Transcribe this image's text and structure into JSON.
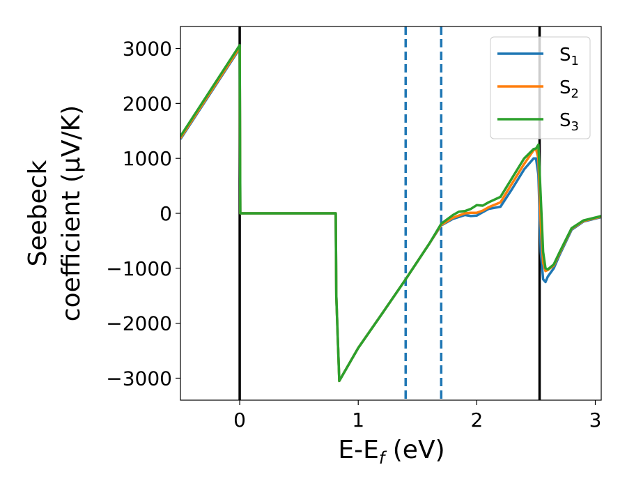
{
  "chart_data": {
    "type": "line",
    "xlabel": "E-E",
    "xlabel_sub": "f",
    "xlabel_unit": " (eV)",
    "ylabel_line1": "Seebeck",
    "ylabel_line2": "coefficient  (μV/K)",
    "xlim": [
      -0.5,
      3.05
    ],
    "ylim": [
      -3400,
      3400
    ],
    "xticks": [
      0,
      1,
      2,
      3
    ],
    "xtick_labels": [
      "0",
      "1",
      "2",
      "3"
    ],
    "yticks": [
      3000,
      2000,
      1000,
      0,
      -1000,
      -2000,
      -3000
    ],
    "ytick_labels": [
      "3000",
      "2000",
      "1000",
      "0",
      "−1000",
      "−2000",
      "−3000"
    ],
    "grid": false,
    "legend_position": "top-right",
    "vertical_lines": [
      {
        "x": 0.0,
        "style": "solid",
        "color": "#000000"
      },
      {
        "x": 1.4,
        "style": "dashed",
        "color": "#1f77b4"
      },
      {
        "x": 1.7,
        "style": "dashed",
        "color": "#1f77b4"
      },
      {
        "x": 2.53,
        "style": "solid",
        "color": "#000000"
      }
    ],
    "series": [
      {
        "name": "S",
        "subscript": "1",
        "color": "#1f77b4",
        "x": [
          -0.5,
          0.0,
          0.005,
          0.81,
          0.815,
          0.84,
          1.0,
          1.2,
          1.4,
          1.6,
          1.7,
          1.8,
          1.9,
          1.95,
          2.0,
          2.05,
          2.1,
          2.2,
          2.3,
          2.4,
          2.48,
          2.5,
          2.52,
          2.54,
          2.56,
          2.58,
          2.6,
          2.65,
          2.7,
          2.8,
          2.9,
          3.05
        ],
        "values": [
          1350,
          3000,
          0,
          0,
          -1500,
          -3050,
          -2450,
          -1830,
          -1200,
          -550,
          -220,
          -100,
          -30,
          -50,
          -40,
          20,
          80,
          120,
          450,
          800,
          1000,
          1000,
          700,
          -700,
          -1200,
          -1250,
          -1150,
          -1000,
          -750,
          -300,
          -150,
          -70
        ]
      },
      {
        "name": "S",
        "subscript": "2",
        "color": "#ff7f0e",
        "x": [
          -0.5,
          0.0,
          0.005,
          0.81,
          0.815,
          0.84,
          1.0,
          1.2,
          1.4,
          1.6,
          1.7,
          1.8,
          1.9,
          1.95,
          2.0,
          2.05,
          2.1,
          2.2,
          2.3,
          2.4,
          2.48,
          2.5,
          2.52,
          2.54,
          2.56,
          2.58,
          2.6,
          2.65,
          2.7,
          2.8,
          2.9,
          3.05
        ],
        "values": [
          1370,
          3020,
          0,
          0,
          -1500,
          -3050,
          -2450,
          -1830,
          -1200,
          -550,
          -210,
          -80,
          0,
          10,
          10,
          50,
          110,
          200,
          550,
          900,
          1150,
          1170,
          1000,
          -200,
          -900,
          -1050,
          -1030,
          -950,
          -720,
          -280,
          -140,
          -60
        ]
      },
      {
        "name": "S",
        "subscript": "3",
        "color": "#2ca02c",
        "x": [
          -0.5,
          0.0,
          0.005,
          0.81,
          0.815,
          0.84,
          1.0,
          1.2,
          1.4,
          1.6,
          1.7,
          1.8,
          1.85,
          1.9,
          1.95,
          2.0,
          2.05,
          2.1,
          2.2,
          2.3,
          2.4,
          2.48,
          2.5,
          2.52,
          2.54,
          2.56,
          2.58,
          2.6,
          2.65,
          2.7,
          2.8,
          2.9,
          3.05
        ],
        "values": [
          1400,
          3060,
          0,
          0,
          -1500,
          -3050,
          -2450,
          -1830,
          -1200,
          -550,
          -190,
          -30,
          30,
          40,
          80,
          150,
          140,
          200,
          300,
          650,
          1000,
          1170,
          1180,
          1250,
          300,
          -700,
          -1000,
          -1020,
          -930,
          -700,
          -270,
          -130,
          -50
        ]
      }
    ]
  }
}
